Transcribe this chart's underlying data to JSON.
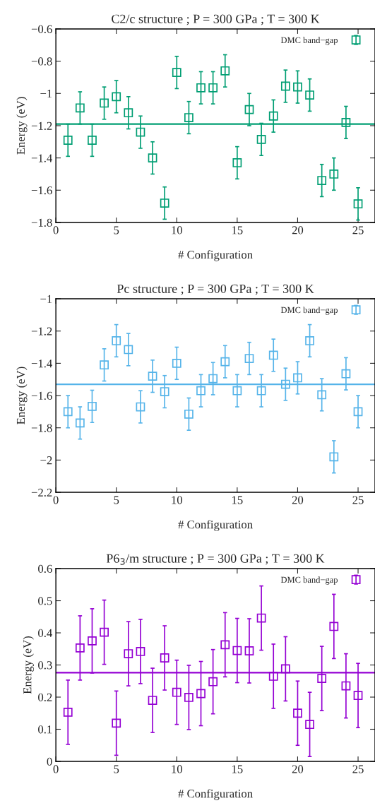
{
  "chart_data": [
    {
      "type": "scatter",
      "title": "C2/c structure ; P = 300 GPa ; T = 300 K",
      "xlabel": "# Configuration",
      "ylabel": "Energy (eV)",
      "x": [
        1,
        2,
        3,
        4,
        5,
        6,
        7,
        8,
        9,
        10,
        11,
        12,
        13,
        14,
        15,
        16,
        17,
        18,
        19,
        20,
        21,
        22,
        23,
        24,
        25
      ],
      "series": [
        {
          "name": "DMC band−gap",
          "color": "#009e73",
          "values": [
            -1.29,
            -1.09,
            -1.29,
            -1.06,
            -1.02,
            -1.12,
            -1.24,
            -1.4,
            -1.68,
            -0.87,
            -1.15,
            -0.965,
            -0.965,
            -0.86,
            -1.43,
            -1.1,
            -1.285,
            -1.14,
            -0.955,
            -0.96,
            -1.01,
            -1.54,
            -1.5,
            -1.18,
            -1.685
          ],
          "errors": [
            0.1,
            0.1,
            0.1,
            0.1,
            0.1,
            0.1,
            0.1,
            0.1,
            0.1,
            0.1,
            0.1,
            0.1,
            0.1,
            0.1,
            0.1,
            0.1,
            0.1,
            0.1,
            0.1,
            0.1,
            0.1,
            0.1,
            0.1,
            0.1,
            0.1
          ]
        }
      ],
      "ref_lines": [
        {
          "axis": "y",
          "value": -1.19,
          "color": "#009e73"
        }
      ],
      "xlim": [
        0,
        26.4
      ],
      "xticks": [
        0,
        5,
        10,
        15,
        20,
        25
      ],
      "ylim": [
        -1.8,
        -0.6
      ],
      "yticks": [
        -1.8,
        -1.6,
        -1.4,
        -1.2,
        -1,
        -0.8,
        -0.6
      ],
      "marker": "square",
      "legend": "top right",
      "grid": false
    },
    {
      "type": "scatter",
      "title": "Pc structure ; P = 300 GPa ; T = 300 K",
      "xlabel": "# Configuration",
      "ylabel": "Energy (eV)",
      "x": [
        1,
        2,
        3,
        4,
        5,
        6,
        7,
        8,
        9,
        10,
        11,
        12,
        13,
        14,
        15,
        16,
        17,
        18,
        19,
        20,
        21,
        22,
        23,
        24,
        25
      ],
      "series": [
        {
          "name": "DMC band−gap",
          "color": "#56b4e9",
          "values": [
            -1.7,
            -1.77,
            -1.667,
            -1.41,
            -1.26,
            -1.315,
            -1.67,
            -1.48,
            -1.576,
            -1.4,
            -1.715,
            -1.57,
            -1.495,
            -1.39,
            -1.57,
            -1.37,
            -1.57,
            -1.35,
            -1.53,
            -1.49,
            -1.26,
            -1.595,
            -1.98,
            -1.465,
            -1.7
          ],
          "errors": [
            0.1,
            0.1,
            0.1,
            0.1,
            0.1,
            0.1,
            0.1,
            0.1,
            0.1,
            0.1,
            0.1,
            0.1,
            0.1,
            0.1,
            0.1,
            0.1,
            0.1,
            0.1,
            0.1,
            0.1,
            0.1,
            0.1,
            0.1,
            0.1,
            0.1
          ]
        }
      ],
      "ref_lines": [
        {
          "axis": "y",
          "value": -1.53,
          "color": "#56b4e9"
        }
      ],
      "xlim": [
        0,
        26.4
      ],
      "xticks": [
        0,
        5,
        10,
        15,
        20,
        25
      ],
      "ylim": [
        -2.2,
        -1.0
      ],
      "yticks": [
        -2.2,
        -2,
        -1.8,
        -1.6,
        -1.4,
        -1.2,
        -1
      ],
      "marker": "square",
      "legend": "top right",
      "grid": false
    },
    {
      "type": "scatter",
      "title": "P6$_{3}$/m structure ; P = 300 GPa ; T = 300 K",
      "xlabel": "# Configuration",
      "ylabel": "Energy (eV)",
      "x": [
        1,
        2,
        3,
        4,
        5,
        6,
        7,
        8,
        9,
        10,
        11,
        12,
        13,
        14,
        15,
        16,
        17,
        18,
        19,
        20,
        21,
        22,
        23,
        24,
        25
      ],
      "series": [
        {
          "name": "DMC band−gap",
          "color": "#9400d3",
          "values": [
            0.153,
            0.353,
            0.375,
            0.402,
            0.119,
            0.335,
            0.342,
            0.19,
            0.322,
            0.215,
            0.199,
            0.211,
            0.248,
            0.363,
            0.345,
            0.344,
            0.446,
            0.265,
            0.288,
            0.15,
            0.115,
            0.258,
            0.42,
            0.235,
            0.205
          ],
          "errors": [
            0.1,
            0.1,
            0.1,
            0.1,
            0.1,
            0.1,
            0.1,
            0.1,
            0.1,
            0.1,
            0.1,
            0.1,
            0.1,
            0.1,
            0.1,
            0.1,
            0.1,
            0.1,
            0.1,
            0.1,
            0.1,
            0.1,
            0.1,
            0.1,
            0.1
          ]
        }
      ],
      "ref_lines": [
        {
          "axis": "y",
          "value": 0.276,
          "color": "#9400d3"
        }
      ],
      "xlim": [
        0,
        26.4
      ],
      "xticks": [
        0,
        5,
        10,
        15,
        20,
        25
      ],
      "ylim": [
        0,
        0.6
      ],
      "yticks": [
        0,
        0.1,
        0.2,
        0.3,
        0.4,
        0.5,
        0.6
      ],
      "marker": "square",
      "legend": "top right",
      "grid": false
    }
  ]
}
